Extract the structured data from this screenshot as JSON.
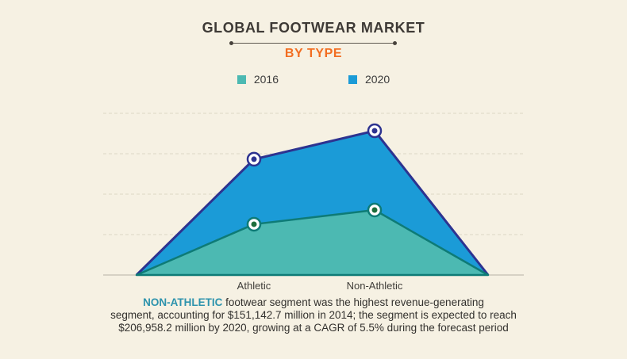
{
  "header": {
    "title": "GLOBAL FOOTWEAR MARKET",
    "subtitle": "BY TYPE"
  },
  "legend": {
    "items": [
      {
        "label": "2016",
        "color": "#4cb9b2"
      },
      {
        "label": "2020",
        "color": "#1b9bd7"
      }
    ]
  },
  "chart_data": {
    "type": "area",
    "title": "Global Footwear Market by Type",
    "categories": [
      "Athletic",
      "Non-Athletic"
    ],
    "series": [
      {
        "name": "2016",
        "values_pct_of_plot_height": [
          31.4,
          40.2
        ],
        "fill": "#4cb9b2",
        "stroke": "#0e7b76",
        "marker_center": "#1d6e3c"
      },
      {
        "name": "2020",
        "values_pct_of_plot_height": [
          71.6,
          89.2
        ],
        "fill": "#1b9bd7",
        "stroke": "#2d3390",
        "marker_center": "#2d3390"
      }
    ],
    "xlabel": "",
    "ylabel": "",
    "y_axis_numeric_labels": false,
    "grid": "4 dashed horizontal gridlines, no vertical grid",
    "legend_position": "top-center"
  },
  "caption": {
    "highlight": "NON-ATHLETIC",
    "line1_rest": " footwear segment was the highest revenue-generating",
    "line2": "segment, accounting for $151,142.7 million in 2014; the segment is expected to reach",
    "line3": "$206,958.2 million by 2020, growing at a CAGR of 5.5% during the forecast period",
    "highlight_color": "#2d93ad"
  },
  "colors": {
    "background": "#f6f1e3",
    "title_text": "#3e3a36",
    "subtitle_orange": "#f26e22",
    "gridline": "#dcd7c6",
    "axis_line": "#b5b1a4",
    "axis_label_text": "#3f3d39",
    "caption_text": "#33312e",
    "marker_ring": "#ffffff"
  }
}
